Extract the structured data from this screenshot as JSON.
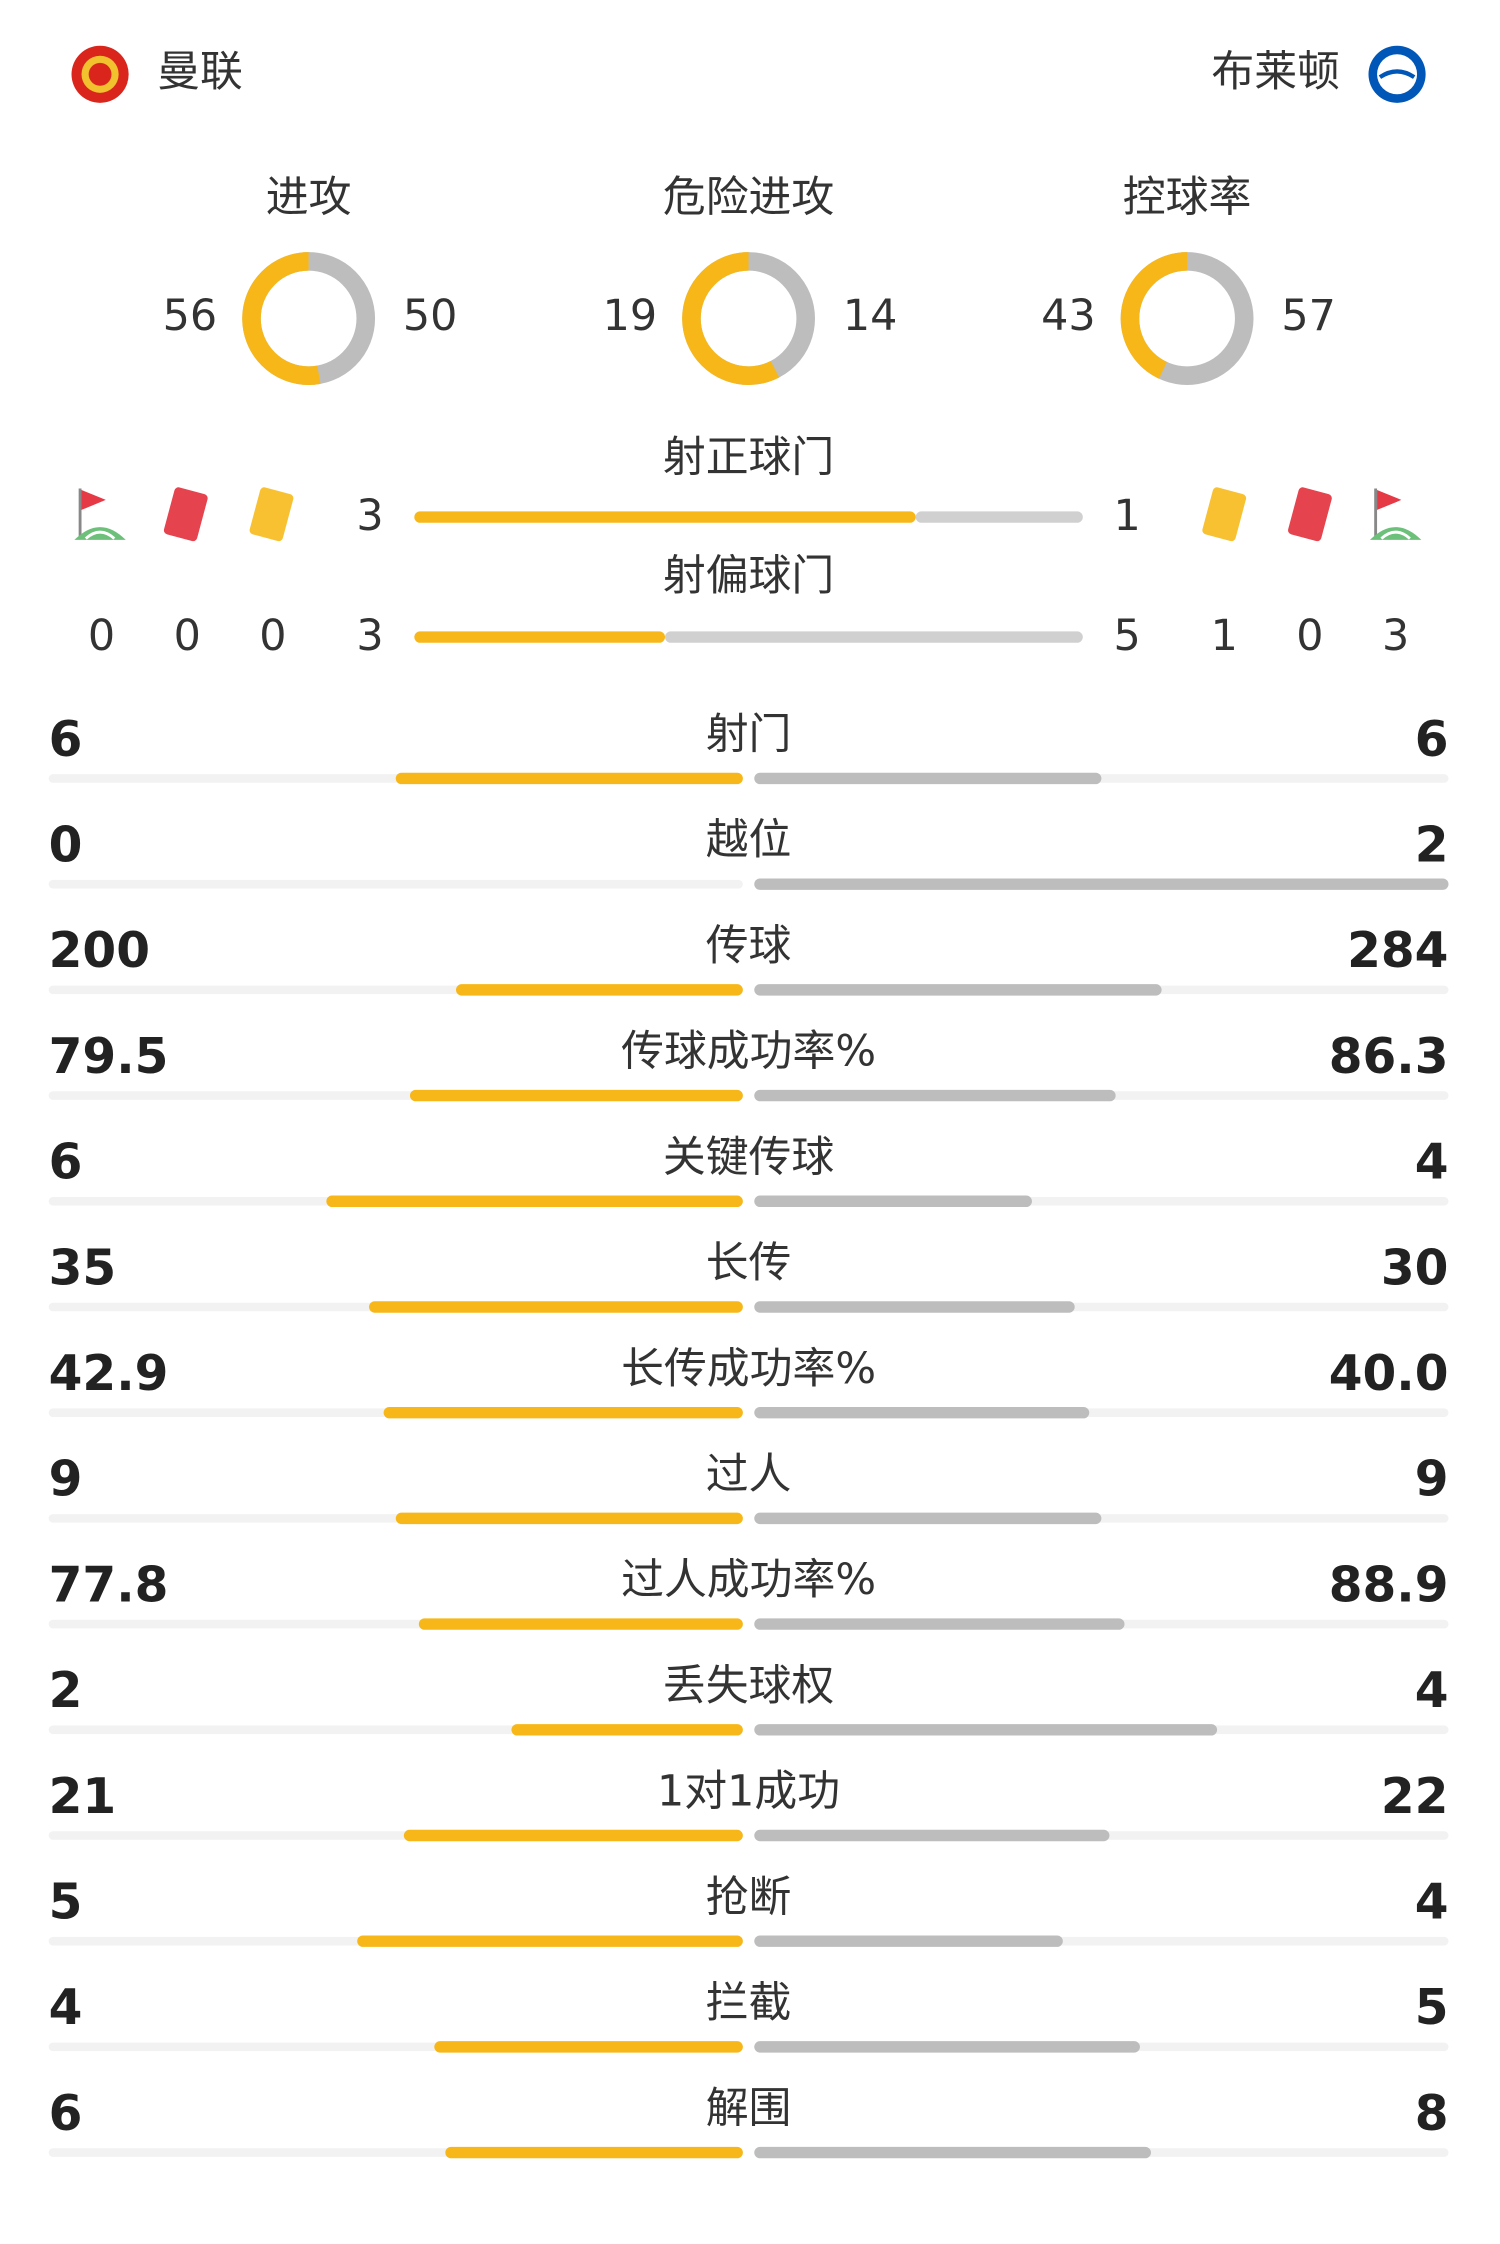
{
  "header": {
    "home": "曼联",
    "away": "布莱顿"
  },
  "rings": [
    {
      "label": "进攻",
      "home": 56,
      "away": 50
    },
    {
      "label": "危险进攻",
      "home": 19,
      "away": 14
    },
    {
      "label": "控球率",
      "home": 43,
      "away": 57
    }
  ],
  "shots": [
    {
      "label": "射正球门",
      "home": 3,
      "away": 1
    },
    {
      "label": "射偏球门",
      "home": 3,
      "away": 5
    }
  ],
  "cards": {
    "home": {
      "corners": 0,
      "red": 0,
      "yellow": 0
    },
    "away": {
      "yellow": 1,
      "red": 0,
      "corners": 3
    }
  },
  "stats": [
    {
      "name": "射门",
      "home": 6,
      "away": 6
    },
    {
      "name": "越位",
      "home": 0,
      "away": 2
    },
    {
      "name": "传球",
      "home": 200,
      "away": 284
    },
    {
      "name": "传球成功率%",
      "home": 79.5,
      "away": 86.3
    },
    {
      "name": "关键传球",
      "home": 6,
      "away": 4
    },
    {
      "name": "长传",
      "home": 35,
      "away": 30
    },
    {
      "name": "长传成功率%",
      "home": 42.9,
      "away": 40,
      "away_label": "40.0"
    },
    {
      "name": "过人",
      "home": 9,
      "away": 9
    },
    {
      "name": "过人成功率%",
      "home": 77.8,
      "away": 88.9
    },
    {
      "name": "丢失球权",
      "home": 2,
      "away": 4
    },
    {
      "name": "1对1成功",
      "home": 21,
      "away": 22
    },
    {
      "name": "抢断",
      "home": 5,
      "away": 4
    },
    {
      "name": "拦截",
      "home": 4,
      "away": 5
    },
    {
      "name": "解围",
      "home": 6,
      "away": 8
    }
  ]
}
